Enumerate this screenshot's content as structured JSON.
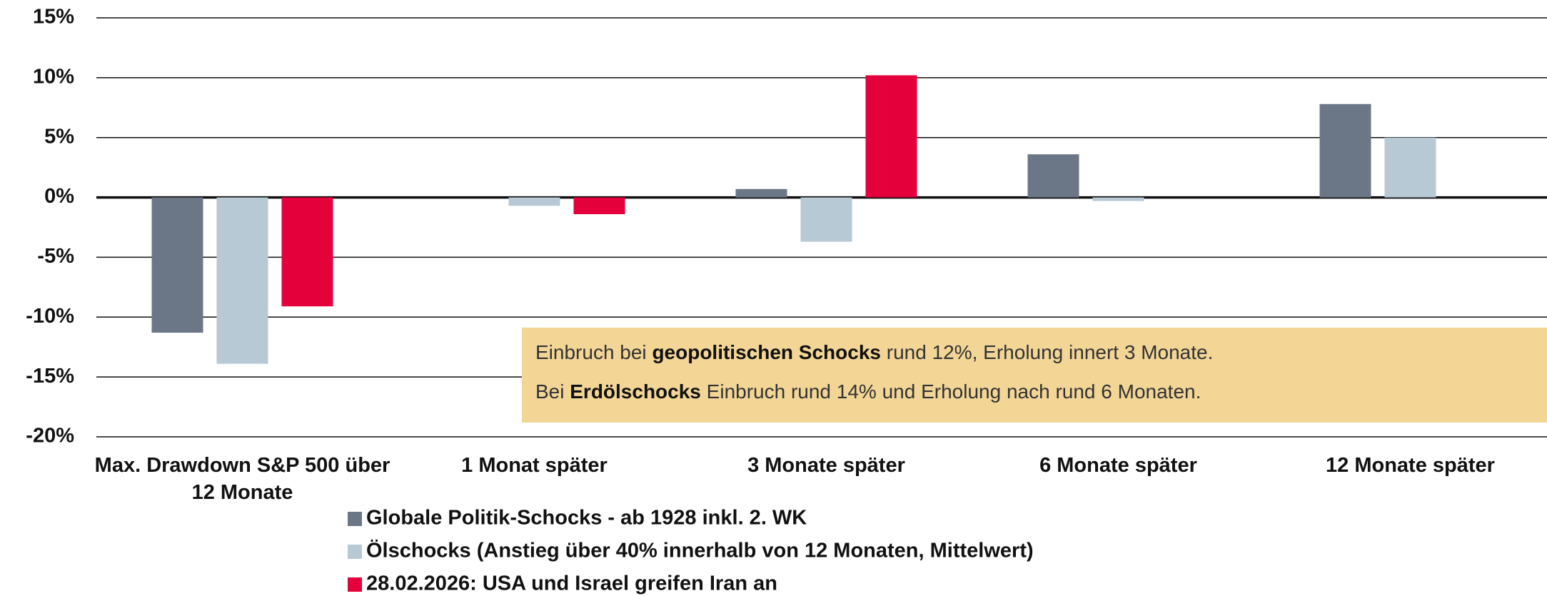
{
  "chart_data": {
    "type": "bar",
    "categories": [
      "Max. Drawdown S&P 500 über 12 Monate",
      "1 Monat später",
      "3 Monate später",
      "6 Monate später",
      "12 Monate später"
    ],
    "series": [
      {
        "name": "Globale Politik-Schocks - ab 1928 inkl. 2. WK",
        "color": "#6b7787",
        "values": [
          -11.3,
          null,
          0.7,
          3.6,
          7.8
        ]
      },
      {
        "name": "Ölschocks (Anstieg über 40% innerhalb von 12 Monaten, Mittelwert)",
        "color": "#b7c9d5",
        "values": [
          -13.9,
          -0.7,
          -3.7,
          -0.3,
          5.0
        ]
      },
      {
        "name": "28.02.2026: USA und Israel greifen Iran an",
        "color": "#e4003a",
        "values": [
          -9.1,
          -1.4,
          10.2,
          null,
          null
        ]
      }
    ],
    "ylim": [
      -20,
      15
    ],
    "yticks": [
      {
        "value": -20,
        "label": "-20%"
      },
      {
        "value": -15,
        "label": "-15%"
      },
      {
        "value": -10,
        "label": "-10%"
      },
      {
        "value": -5,
        "label": "-5%"
      },
      {
        "value": 0,
        "label": "0%"
      },
      {
        "value": 5,
        "label": "5%"
      },
      {
        "value": 10,
        "label": "10%"
      },
      {
        "value": 15,
        "label": "15%"
      }
    ],
    "grid": true,
    "annotation": {
      "color": "#f3d596",
      "lines": [
        [
          {
            "text": "Einbruch bei "
          },
          {
            "text": "geopolitischen Schocks",
            "bold": true
          },
          {
            "text": " rund 12%, Erholung innert 3 Monate."
          }
        ],
        [
          {
            "text": "Bei "
          },
          {
            "text": "Erdölschocks",
            "bold": true
          },
          {
            "text": " Einbruch rund 14% und Erholung nach rund 6 Monaten."
          }
        ]
      ]
    }
  }
}
